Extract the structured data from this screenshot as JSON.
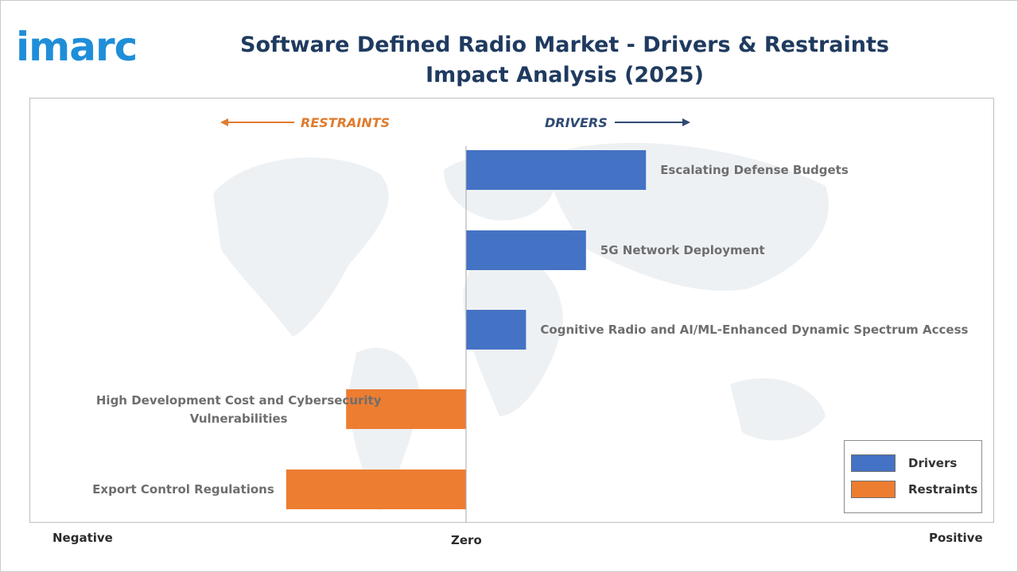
{
  "brand": {
    "logo_text": "imarc"
  },
  "title": "Software Defined Radio Market - Drivers & Restraints Impact Analysis (2025)",
  "header": {
    "restraints_label": "RESTRAINTS",
    "drivers_label": "DRIVERS"
  },
  "colors": {
    "drivers": "#4472c4",
    "restraints": "#ed7d31",
    "restraints_text": "#e07b2e",
    "drivers_text": "#2f4a73",
    "title": "#1f3a5f"
  },
  "axis": {
    "negative": "Negative",
    "zero": "Zero",
    "positive": "Positive"
  },
  "legend": {
    "drivers": "Drivers",
    "restraints": "Restraints"
  },
  "chart_data": {
    "type": "bar",
    "orientation": "horizontal-diverging",
    "title": "Software Defined Radio Market - Drivers & Restraints Impact Analysis (2025)",
    "xlim": [
      -1,
      1
    ],
    "grid": false,
    "legend_position": "bottom-right",
    "categories": [
      "Escalating Defense Budgets",
      "5G Network Deployment",
      "Cognitive Radio and AI/ML-Enhanced Dynamic Spectrum Access",
      "High Development Cost and Cybersecurity Vulnerabilities",
      "Export Control Regulations"
    ],
    "values": [
      0.39,
      0.26,
      0.13,
      -0.26,
      -0.39
    ],
    "series_type": [
      "Drivers",
      "Drivers",
      "Drivers",
      "Restraints",
      "Restraints"
    ]
  }
}
